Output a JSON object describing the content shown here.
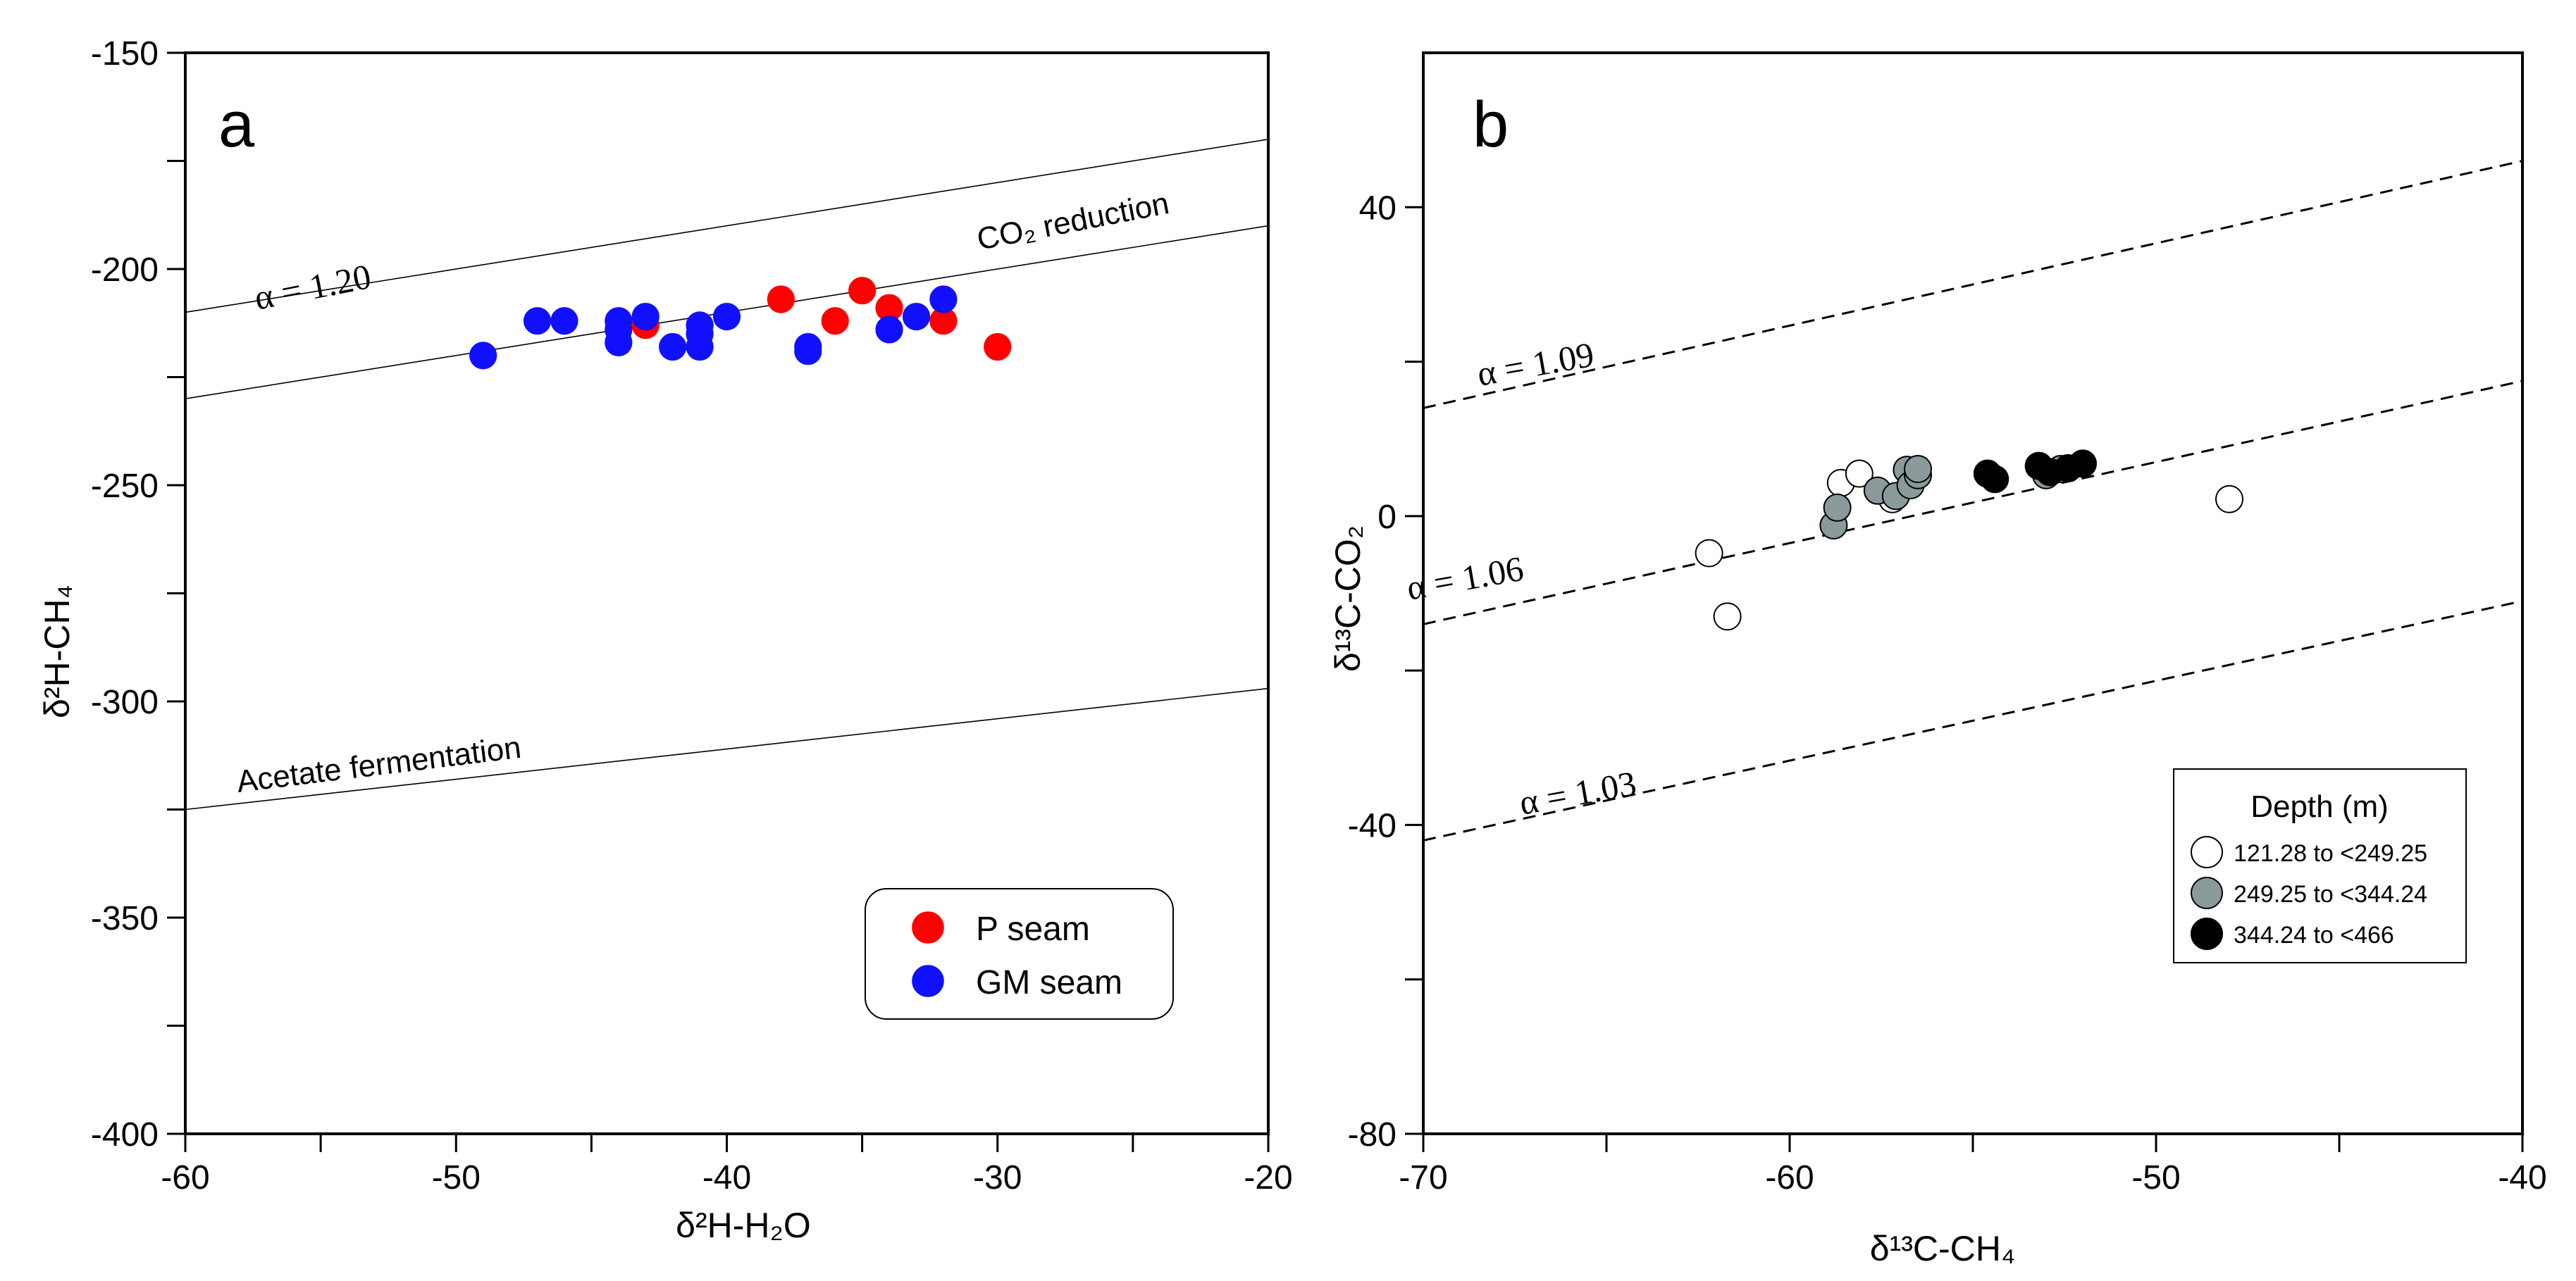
{
  "chart_data": [
    {
      "type": "scatter",
      "panel_label": "a",
      "xlabel": "δ²H-H₂O",
      "ylabel": "δ²H-CH₄",
      "xlim": [
        -60,
        -20
      ],
      "ylim": [
        -400,
        -150
      ],
      "xticks": [
        -60,
        -50,
        -40,
        -30,
        -20
      ],
      "yticks": [
        -400,
        -350,
        -300,
        -250,
        -200,
        -150
      ],
      "grid": false,
      "legend_position": "bottom-right",
      "series": [
        {
          "name": "P seam",
          "color": "#ff0000",
          "points": [
            {
              "x": -43,
              "y": -213
            },
            {
              "x": -38,
              "y": -207
            },
            {
              "x": -36,
              "y": -212
            },
            {
              "x": -35,
              "y": -205
            },
            {
              "x": -34,
              "y": -209
            },
            {
              "x": -32,
              "y": -212
            },
            {
              "x": -30,
              "y": -218
            }
          ]
        },
        {
          "name": "GM seam",
          "color": "#1010ff",
          "points": [
            {
              "x": -49,
              "y": -220
            },
            {
              "x": -47,
              "y": -212
            },
            {
              "x": -46,
              "y": -212
            },
            {
              "x": -44,
              "y": -212
            },
            {
              "x": -44,
              "y": -214
            },
            {
              "x": -44,
              "y": -217
            },
            {
              "x": -43,
              "y": -211
            },
            {
              "x": -42,
              "y": -218
            },
            {
              "x": -41,
              "y": -213
            },
            {
              "x": -41,
              "y": -215
            },
            {
              "x": -41,
              "y": -218
            },
            {
              "x": -40,
              "y": -211
            },
            {
              "x": -37,
              "y": -218
            },
            {
              "x": -37,
              "y": -219
            },
            {
              "x": -34,
              "y": -214
            },
            {
              "x": -33,
              "y": -211
            },
            {
              "x": -32,
              "y": -207
            }
          ]
        }
      ],
      "reference_lines": [
        {
          "x1": -60,
          "y1": -210,
          "x2": -20,
          "y2": -170,
          "label": ""
        },
        {
          "x1": -60,
          "y1": -230,
          "x2": -20,
          "y2": -190,
          "label": "CO₂ reduction"
        },
        {
          "x1": -60,
          "y1": -325,
          "x2": -20,
          "y2": -297,
          "label": "Acetate fermentation"
        }
      ],
      "annotations": [
        {
          "text": "α = 1.20",
          "x": -57,
          "y": -212
        }
      ]
    },
    {
      "type": "scatter",
      "panel_label": "b",
      "xlabel": "δ¹³C-CH₄",
      "ylabel": "δ¹³C-CO₂",
      "xlim": [
        -70,
        -40
      ],
      "ylim": [
        -80,
        60
      ],
      "xticks": [
        -70,
        -60,
        -50,
        -40
      ],
      "yticks": [
        -80,
        -40,
        0,
        40
      ],
      "grid": false,
      "legend_title": "Depth (m)",
      "legend_position": "bottom-right",
      "series": [
        {
          "name": "121.28 to <249.25",
          "color": "#ffffff",
          "points": [
            {
              "x": -62.2,
              "y": -4.8
            },
            {
              "x": -61.7,
              "y": -13.0
            },
            {
              "x": -58.6,
              "y": 4.3
            },
            {
              "x": -58.1,
              "y": 5.5
            },
            {
              "x": -57.2,
              "y": 2.2
            },
            {
              "x": -48.0,
              "y": 2.2
            }
          ]
        },
        {
          "name": "249.25 to <344.24",
          "color": "#8a9a9a",
          "points": [
            {
              "x": -58.8,
              "y": -1.2
            },
            {
              "x": -58.7,
              "y": 1.1
            },
            {
              "x": -57.6,
              "y": 3.3
            },
            {
              "x": -57.1,
              "y": 2.6
            },
            {
              "x": -56.8,
              "y": 6.0
            },
            {
              "x": -56.7,
              "y": 4.0
            },
            {
              "x": -56.5,
              "y": 5.3
            },
            {
              "x": -56.5,
              "y": 6.1
            },
            {
              "x": -53.0,
              "y": 5.3
            },
            {
              "x": -52.6,
              "y": 6.1
            }
          ]
        },
        {
          "name": "344.24 to <466",
          "color": "#000000",
          "points": [
            {
              "x": -54.6,
              "y": 5.5
            },
            {
              "x": -54.4,
              "y": 4.8
            },
            {
              "x": -53.2,
              "y": 6.5
            },
            {
              "x": -52.9,
              "y": 5.7
            },
            {
              "x": -52.4,
              "y": 6.2
            },
            {
              "x": -52.0,
              "y": 6.8
            }
          ]
        }
      ],
      "reference_lines": [
        {
          "x1": -70,
          "y1": 14,
          "x2": -40,
          "y2": 46,
          "label": "α = 1.09"
        },
        {
          "x1": -70,
          "y1": -14,
          "x2": -40,
          "y2": 17.5,
          "label": "α = 1.06"
        },
        {
          "x1": -70,
          "y1": -42,
          "x2": -40,
          "y2": -11,
          "label": "α = 1.03"
        }
      ]
    }
  ]
}
